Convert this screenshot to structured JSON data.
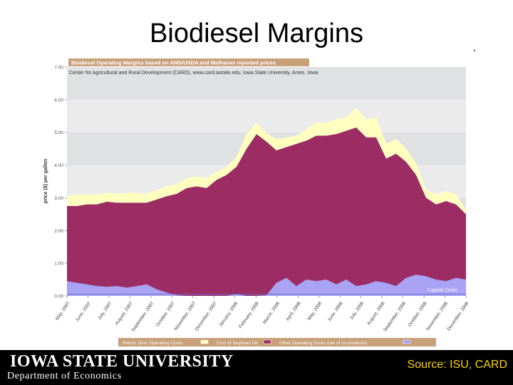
{
  "slide": {
    "title": "Biodiesel Margins",
    "footer_university": "Iowa State University",
    "footer_department": "Department of Economics",
    "source": "Source: ISU, CARD"
  },
  "colors": {
    "return": "#ffffc0",
    "oil": "#9b2d64",
    "other": "#a8a3f5",
    "plot_bg": "#e0e1e3",
    "header": "#c8a07a"
  },
  "chart_data": {
    "type": "area",
    "title": "Biodiesel Operating Margins based on AMS/USDA and Methanex reported prices",
    "subtitle": "Center for Agricultural and Rural Development (CARD), www.card.iastate.edu, Iowa State University, Ames, Iowa",
    "ylabel": "price ($) per gallon",
    "ylim": [
      0,
      7
    ],
    "yticks": [
      "0.00",
      "1.00",
      "2.00",
      "3.00",
      "4.00",
      "5.00",
      "6.00",
      "7.00"
    ],
    "xlim": [
      0,
      20
    ],
    "x_tick_labels": [
      "May, 2007",
      "June, 2007",
      "July, 2007",
      "August, 2007",
      "September, 2007",
      "October, 2007",
      "November, 2007",
      "December, 2007",
      "January, 2008",
      "February, 2008",
      "March, 2008",
      "April, 2008",
      "May, 2008",
      "June, 2008",
      "July, 2008",
      "August, 2008",
      "September, 2008",
      "October, 2008",
      "November, 2008",
      "December, 2008"
    ],
    "x": [
      0,
      0.5,
      1,
      1.5,
      2,
      2.5,
      3,
      3.5,
      4,
      4.5,
      5,
      5.5,
      6,
      6.5,
      7,
      7.5,
      8,
      8.5,
      9,
      9.5,
      10,
      10.5,
      11,
      11.5,
      12,
      12.5,
      13,
      13.5,
      14,
      14.5,
      15,
      15.5,
      16,
      16.5,
      17,
      17.5,
      18,
      18.5,
      19,
      19.5,
      20
    ],
    "series": [
      {
        "name": "Other Operating Costs (net of co-products)",
        "values": [
          0.45,
          0.4,
          0.35,
          0.3,
          0.28,
          0.3,
          0.25,
          0.3,
          0.35,
          0.2,
          0.1,
          0.02,
          0.0,
          0.0,
          0.0,
          0.0,
          0.0,
          0.05,
          0.0,
          0.0,
          0.02,
          0.4,
          0.55,
          0.3,
          0.5,
          0.45,
          0.5,
          0.35,
          0.5,
          0.3,
          0.35,
          0.45,
          0.4,
          0.3,
          0.55,
          0.65,
          0.6,
          0.5,
          0.45,
          0.55,
          0.5
        ]
      },
      {
        "name": "Cost of Soybean Oil",
        "values": [
          2.3,
          2.35,
          2.45,
          2.5,
          2.6,
          2.55,
          2.6,
          2.55,
          2.5,
          2.75,
          2.95,
          3.1,
          3.3,
          3.35,
          3.3,
          3.55,
          3.7,
          3.9,
          4.5,
          4.95,
          4.7,
          4.05,
          4.0,
          4.35,
          4.25,
          4.45,
          4.4,
          4.6,
          4.55,
          4.85,
          4.5,
          4.4,
          3.8,
          4.05,
          3.55,
          3.05,
          2.4,
          2.3,
          2.45,
          2.25,
          2.0
        ]
      },
      {
        "name": "Return Over Operating Costs",
        "values": [
          0.3,
          0.35,
          0.3,
          0.3,
          0.28,
          0.27,
          0.3,
          0.3,
          0.28,
          0.28,
          0.3,
          0.3,
          0.3,
          0.3,
          0.3,
          0.25,
          0.25,
          0.3,
          0.45,
          0.35,
          0.25,
          0.35,
          0.3,
          0.25,
          0.35,
          0.4,
          0.4,
          0.45,
          0.4,
          0.6,
          0.55,
          0.6,
          0.45,
          0.45,
          0.4,
          0.35,
          0.25,
          0.3,
          0.3,
          0.3,
          0.15
        ]
      }
    ],
    "legend": [
      "Return Over Operating Costs",
      "Cost of Soybean Oil",
      "Other Operating Costs (net of co-products)"
    ],
    "annotation": "Capital Costs",
    "capital_costs": 0.05
  }
}
